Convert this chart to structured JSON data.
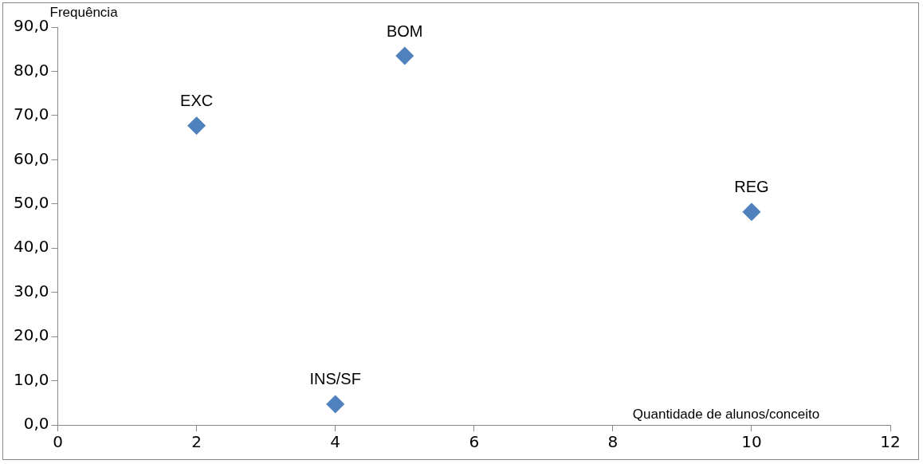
{
  "chart_data": {
    "type": "scatter",
    "xlabel": "Quantidade de alunos/conceito",
    "ylabel": "Frequência",
    "x": [
      2,
      4,
      5,
      10
    ],
    "values": [
      67.7,
      4.7,
      83.5,
      48.2
    ],
    "color": "#4f81bd",
    "marker": "diamond",
    "xlim": [
      0,
      12
    ],
    "xticks": [
      0,
      2,
      4,
      6,
      8,
      10,
      12
    ],
    "ylim": [
      0,
      90
    ],
    "yticks": [
      {
        "value": 0,
        "label": "0,0"
      },
      {
        "value": 10,
        "label": "10,0"
      },
      {
        "value": 20,
        "label": "20,0"
      },
      {
        "value": 30,
        "label": "30,0"
      },
      {
        "value": 40,
        "label": "40,0"
      },
      {
        "value": 50,
        "label": "50,0"
      },
      {
        "value": 60,
        "label": "60,0"
      },
      {
        "value": 70,
        "label": "70,0"
      },
      {
        "value": 80,
        "label": "80,0"
      },
      {
        "value": 90,
        "label": "90,0"
      }
    ],
    "annotations": [
      {
        "text": "EXC",
        "x": 2,
        "y": 67.7
      },
      {
        "text": "INS/SF",
        "x": 4,
        "y": 4.7
      },
      {
        "text": "BOM",
        "x": 5,
        "y": 83.5
      },
      {
        "text": "REG",
        "x": 10,
        "y": 48.2
      }
    ],
    "grid": false,
    "legend": false
  }
}
